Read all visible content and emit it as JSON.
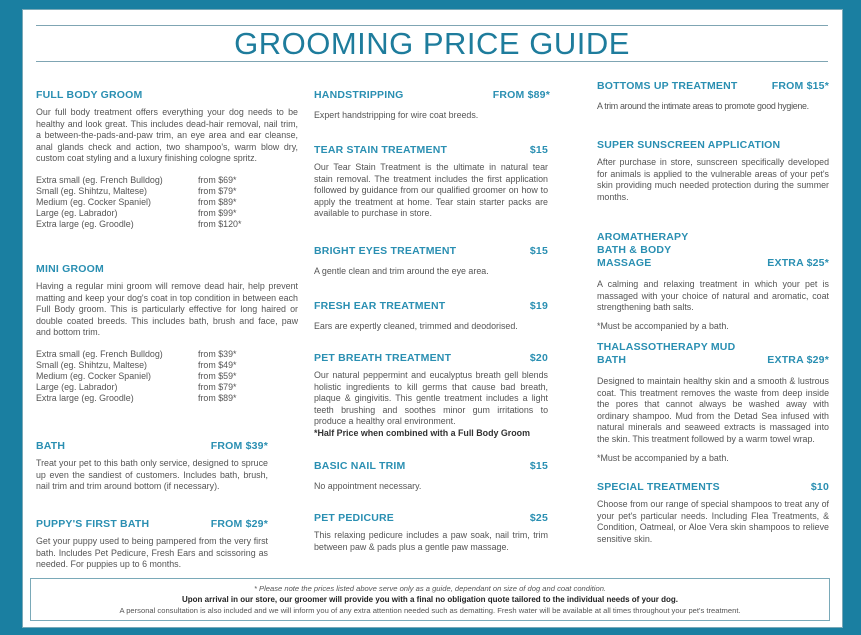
{
  "title": "GROOMING PRICE GUIDE",
  "colors": {
    "border": "#1a7fa1",
    "heading": "#2a8fb2",
    "title": "#1e7c9c"
  },
  "sections": [
    {
      "name": "FULL BODY GROOM",
      "price": "",
      "description": "Our full body treatment offers everything your dog needs to be healthy and look great. This includes dead-hair removal, nail trim, a between-the-pads-and-paw trim, an eye area and ear cleanse, anal glands check and action, two shampoo's, warm blow dry, custom coat styling and a luxury finishing cologne spritz.",
      "prices": [
        {
          "size": "Extra small (eg. French Bulldog)",
          "price": "from $69*"
        },
        {
          "size": "Small (eg. Shihtzu, Maltese)",
          "price": "from $79*"
        },
        {
          "size": "Medium (eg. Cocker Spaniel)",
          "price": "from $89*"
        },
        {
          "size": "Large (eg. Labrador)",
          "price": "from $99*"
        },
        {
          "size": "Extra large (eg. Groodle)",
          "price": "from $120*"
        }
      ]
    },
    {
      "name": "MINI GROOM",
      "price": "",
      "description": "Having a regular mini groom will remove dead hair, help prevent matting and keep your dog's coat in top condition in between each Full Body groom. This is particularly effective for long haired or double coated breeds. This includes bath, brush and face, paw and bottom trim.",
      "prices": [
        {
          "size": "Extra small  (eg. French Bulldog)",
          "price": "from $39*"
        },
        {
          "size": "Small (eg. Shihtzu, Maltese)",
          "price": "from $49*"
        },
        {
          "size": "Medium (eg. Cocker Spaniel)",
          "price": "from $59*"
        },
        {
          "size": "Large (eg. Labrador)",
          "price": "from $79*"
        },
        {
          "size": "Extra large (eg. Groodle)",
          "price": "from $89*"
        }
      ]
    },
    {
      "name": "BATH",
      "price": "FROM $39*",
      "description": "Treat your pet to this bath only service, designed to spruce up even the sandiest of customers.  Includes bath, brush, nail trim and trim around bottom (if necessary)."
    },
    {
      "name": "PUPPY'S FIRST BATH",
      "price": "FROM $29*",
      "description": "Get your puppy used to being pampered from the very first bath.  Includes Pet Pedicure, Fresh Ears and scissoring as needed. For puppies up to 6 months."
    },
    {
      "name": "HANDSTRIPPING",
      "price": "FROM $89*",
      "description": "Expert handstripping for wire coat breeds."
    },
    {
      "name": "TEAR STAIN TREATMENT",
      "price": "$15",
      "description": "Our Tear Stain Treatment is the ultimate in natural tear stain removal. The treatment includes the first application followed by guidance from our qualified groomer on how to apply the treatment at home. Tear stain starter packs are available to purchase in store."
    },
    {
      "name": "BRIGHT EYES TREATMENT",
      "price": "$15",
      "description": "A gentle clean and trim around the eye area."
    },
    {
      "name": "FRESH EAR TREATMENT",
      "price": "$19",
      "description": "Ears are expertly cleaned, trimmed and deodorised."
    },
    {
      "name": "PET BREATH TREATMENT",
      "price": "$20",
      "description": "Our natural peppermint and eucalyptus breath gell blends holistic ingredients to kill germs that cause bad breath, plaque & gingivitis. This gentle treatment includes a light teeth brushing and soothes minor gum irritations to produce a healthy oral environment.",
      "bold_note": "*Half Price when combined with a Full Body Groom"
    },
    {
      "name": "BASIC NAIL TRIM",
      "price": "$15",
      "description": "No appointment necessary."
    },
    {
      "name": "PET PEDICURE",
      "price": "$25",
      "description": "This relaxing pedicure includes a paw soak, nail trim, trim between paw & pads plus a gentle paw massage."
    },
    {
      "name": "BOTTOMS UP TREATMENT",
      "price": "FROM $15*",
      "description": "A trim around the intimate areas to promote good hygiene."
    },
    {
      "name": "SUPER SUNSCREEN APPLICATION",
      "price": "",
      "description": "After purchase in store, sunscreen specifically developed for animals is applied to the vulnerable areas of your pet's skin providing much needed protection during the summer months."
    },
    {
      "name": "AROMATHERAPY BATH & BODY MASSAGE",
      "price": "EXTRA $25*",
      "description": "A calming and relaxing treatment in which your pet is massaged with your choice of natural and aromatic, coat strengthening bath salts.",
      "note": "*Must be accompanied by a bath."
    },
    {
      "name": "THALASSOTHERAPY MUD BATH",
      "price": "EXTRA $29*",
      "description": "Designed to maintain healthy skin and a smooth & lustrous coat. This treatment removes the waste from deep inside the pores that cannot always be washed away with ordinary shampoo. Mud from the Detad Sea infused with natural minerals and seaweed extracts is massaged into the skin. This treatment followed by a warm towel wrap.",
      "note": "*Must be accompanied by a bath."
    },
    {
      "name": "SPECIAL TREATMENTS",
      "price": "$10",
      "description": "Choose from our range of special shampoos to treat any of your pet's particular needs. Including Flea Treatments, & Condition, Oatmeal, or Aloe Vera skin shampoos to relieve sensitive skin."
    }
  ],
  "footer": {
    "line1": "* Please note the prices listed above serve only as a guide, dependant on size of dog and coat condition.",
    "line2": "Upon arrival in our store, our groomer will provide you with a final no obligation quote tailored to the individual needs of your dog.",
    "line3": "A personal consultation is also included and we will inform you of any extra attention needed such as dematting. Fresh water will be available at all times throughout your pet's treatment."
  }
}
